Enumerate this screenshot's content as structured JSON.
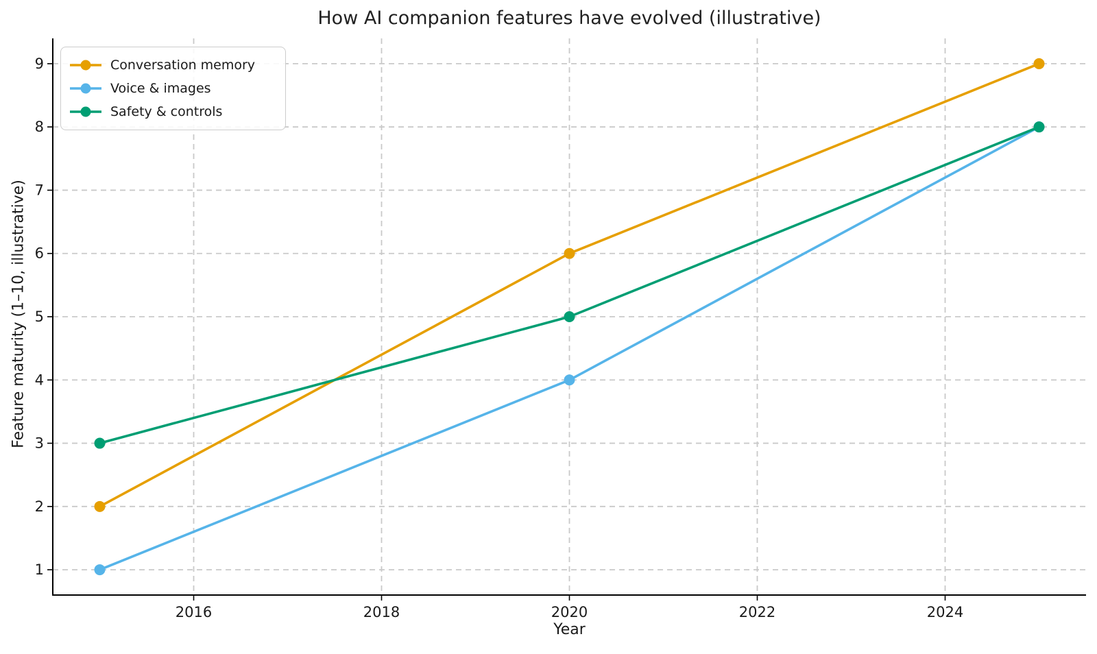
{
  "chart_data": {
    "type": "line",
    "title": "How AI companion features have evolved (illustrative)",
    "xlabel": "Year",
    "ylabel": "Feature maturity (1–10, illustrative)",
    "x": [
      2015,
      2020,
      2025
    ],
    "series": [
      {
        "name": "Conversation memory",
        "color": "#E69F00",
        "values": [
          2,
          6,
          9
        ]
      },
      {
        "name": "Voice & images",
        "color": "#56B4E9",
        "values": [
          1,
          4,
          8
        ]
      },
      {
        "name": "Safety & controls",
        "color": "#009E73",
        "values": [
          3,
          5,
          8
        ]
      }
    ],
    "xticks": [
      2016,
      2018,
      2020,
      2022,
      2024
    ],
    "yticks": [
      1,
      2,
      3,
      4,
      5,
      6,
      7,
      8,
      9
    ],
    "xlim": [
      2014.5,
      2025.5
    ],
    "ylim": [
      0.6,
      9.4
    ],
    "grid": true,
    "grid_style": "dashed",
    "legend_position": "upper left",
    "colors": {
      "grid": "#c9c9c9",
      "spine": "#000000",
      "text": "#1a1a1a",
      "background": "#ffffff"
    }
  }
}
